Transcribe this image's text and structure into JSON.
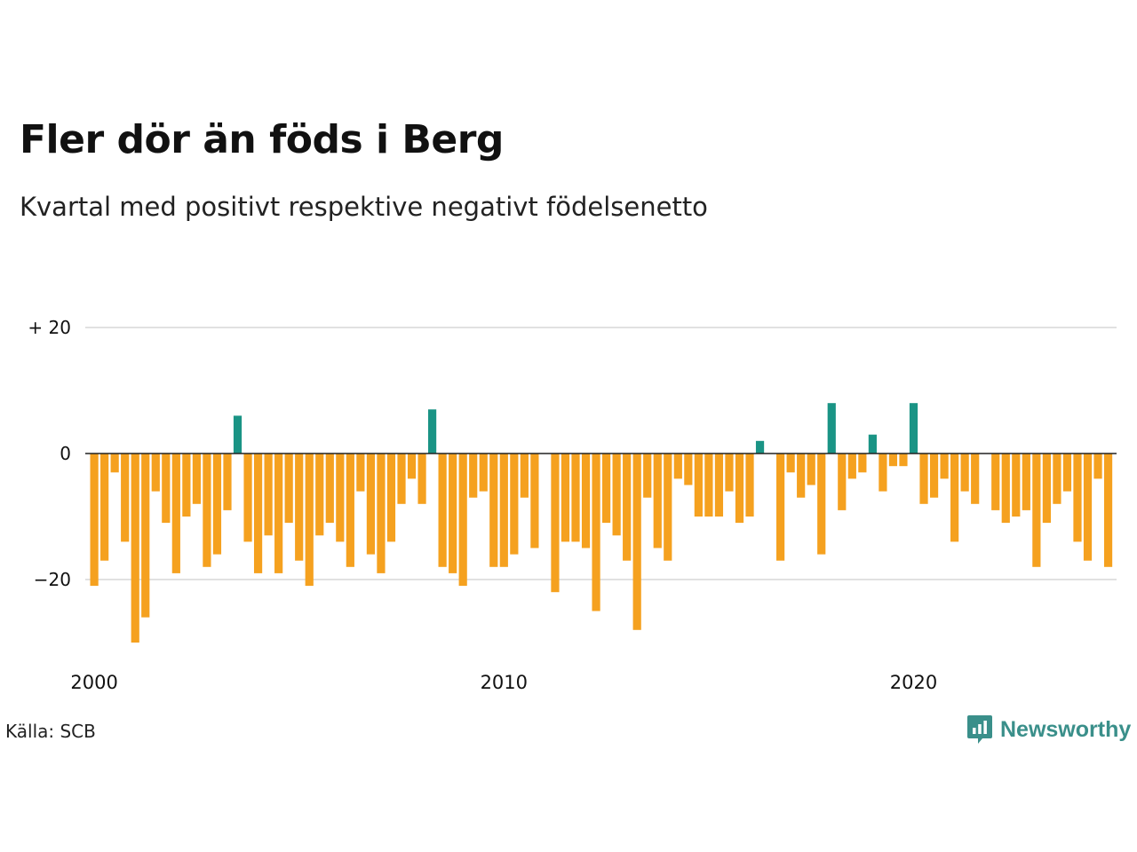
{
  "title": "Fler dör än föds i Berg",
  "subtitle": "Kvartal med positivt respektive negativt födelsenetto",
  "source": "Källa: SCB",
  "brand": "Newsworthy",
  "brand_color": "#3a8f8a",
  "colors": {
    "positive": "#1a9485",
    "negative": "#f5a11f",
    "grid": "#e1e1e1",
    "zero_line": "#222222"
  },
  "chart_data": {
    "type": "bar",
    "title": "Fler dör än föds i Berg",
    "subtitle": "Kvartal med positivt respektive negativt födelsenetto",
    "x": [
      "2000 K1",
      "2000 K2",
      "2000 K3",
      "2000 K4",
      "2001 K1",
      "2001 K2",
      "2001 K3",
      "2001 K4",
      "2002 K1",
      "2002 K2",
      "2002 K3",
      "2002 K4",
      "2003 K1",
      "2003 K2",
      "2003 K3",
      "2003 K4",
      "2004 K1",
      "2004 K2",
      "2004 K3",
      "2004 K4",
      "2005 K1",
      "2005 K2",
      "2005 K3",
      "2005 K4",
      "2006 K1",
      "2006 K2",
      "2006 K3",
      "2006 K4",
      "2007 K1",
      "2007 K2",
      "2007 K3",
      "2007 K4",
      "2008 K1",
      "2008 K2",
      "2008 K3",
      "2008 K4",
      "2009 K1",
      "2009 K2",
      "2009 K3",
      "2009 K4",
      "2010 K1",
      "2010 K2",
      "2010 K3",
      "2010 K4",
      "2011 K1",
      "2011 K2",
      "2011 K3",
      "2011 K4",
      "2012 K1",
      "2012 K2",
      "2012 K3",
      "2012 K4",
      "2013 K1",
      "2013 K2",
      "2013 K3",
      "2013 K4",
      "2014 K1",
      "2014 K2",
      "2014 K3",
      "2014 K4",
      "2015 K1",
      "2015 K2",
      "2015 K3",
      "2015 K4",
      "2016 K1",
      "2016 K2",
      "2016 K3",
      "2016 K4",
      "2017 K1",
      "2017 K2",
      "2017 K3",
      "2017 K4",
      "2018 K1",
      "2018 K2",
      "2018 K3",
      "2018 K4",
      "2019 K1",
      "2019 K2",
      "2019 K3",
      "2019 K4",
      "2020 K1",
      "2020 K2",
      "2020 K3",
      "2020 K4",
      "2021 K1",
      "2021 K2",
      "2021 K3",
      "2021 K4",
      "2022 K1",
      "2022 K2",
      "2022 K3",
      "2022 K4",
      "2023 K1",
      "2023 K2",
      "2023 K3",
      "2023 K4",
      "2024 K1",
      "2024 K2",
      "2024 K3",
      "2024 K4",
      "2025 K1",
      "2025 K2",
      "2025 K3"
    ],
    "values": [
      -21,
      -17,
      -3,
      -14,
      -30,
      -26,
      -6,
      -11,
      -19,
      -10,
      -8,
      -18,
      -16,
      -9,
      6,
      -14,
      -19,
      -13,
      -19,
      -11,
      -17,
      -21,
      -13,
      -11,
      -14,
      -18,
      -6,
      -16,
      -19,
      -14,
      -8,
      -4,
      -8,
      7,
      -18,
      -19,
      -21,
      -7,
      -6,
      -18,
      -18,
      -16,
      -7,
      -15,
      0,
      -22,
      -14,
      -14,
      -15,
      -25,
      -11,
      -13,
      -17,
      -28,
      -7,
      -15,
      -17,
      -4,
      -5,
      -10,
      -10,
      -10,
      -6,
      -11,
      -10,
      2,
      0,
      -17,
      -3,
      -7,
      -5,
      -16,
      8,
      -9,
      -4,
      -3,
      3,
      -6,
      -2,
      -2,
      8,
      -8,
      -7,
      -4,
      -14,
      -6,
      -8,
      0,
      -9,
      -11,
      -10,
      -9,
      -18,
      -11,
      -8,
      -6,
      -14,
      -17,
      -4,
      -18,
      0,
      0,
      0
    ],
    "x_ticks": [
      {
        "label": "2000",
        "index": 0
      },
      {
        "label": "2010",
        "index": 40
      },
      {
        "label": "2020",
        "index": 80
      }
    ],
    "y_ticks": [
      {
        "value": 20,
        "label": "+ 20"
      },
      {
        "value": 0,
        "label": "0"
      },
      {
        "value": -20,
        "label": "−20"
      }
    ],
    "ylim": [
      -32,
      20
    ],
    "grid": true,
    "legend": "none"
  }
}
